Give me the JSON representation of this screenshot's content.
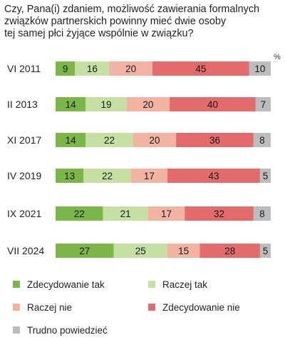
{
  "chart_data": {
    "type": "bar",
    "stacked": true,
    "orientation": "horizontal",
    "title_lines": [
      "Czy, Pana(i) zdaniem, możliwość zawierania formalnych",
      "związków partnerskich powinny mieć dwie osoby",
      "tej samej płci żyjące wspólnie w związku?"
    ],
    "unit": "%",
    "categories": [
      "VI 2011",
      "II 2013",
      "XI 2017",
      "IV 2019",
      "IX 2021",
      "VII 2024"
    ],
    "series": [
      {
        "name": "Zdecydowanie tak",
        "color": "#7ab648",
        "values": [
          9,
          14,
          14,
          13,
          22,
          27
        ]
      },
      {
        "name": "Raczej tak",
        "color": "#c6e0a4",
        "values": [
          16,
          19,
          22,
          22,
          21,
          25
        ]
      },
      {
        "name": "Raczej nie",
        "color": "#f2b3a3",
        "values": [
          20,
          20,
          20,
          17,
          17,
          15
        ]
      },
      {
        "name": "Zdecydowanie nie",
        "color": "#e36b6b",
        "values": [
          45,
          40,
          36,
          43,
          32,
          28
        ]
      },
      {
        "name": "Trudno powiedzieć",
        "color": "#bdbdbd",
        "values": [
          10,
          7,
          8,
          5,
          8,
          5
        ]
      }
    ],
    "legend_position": "bottom",
    "grid": false
  }
}
